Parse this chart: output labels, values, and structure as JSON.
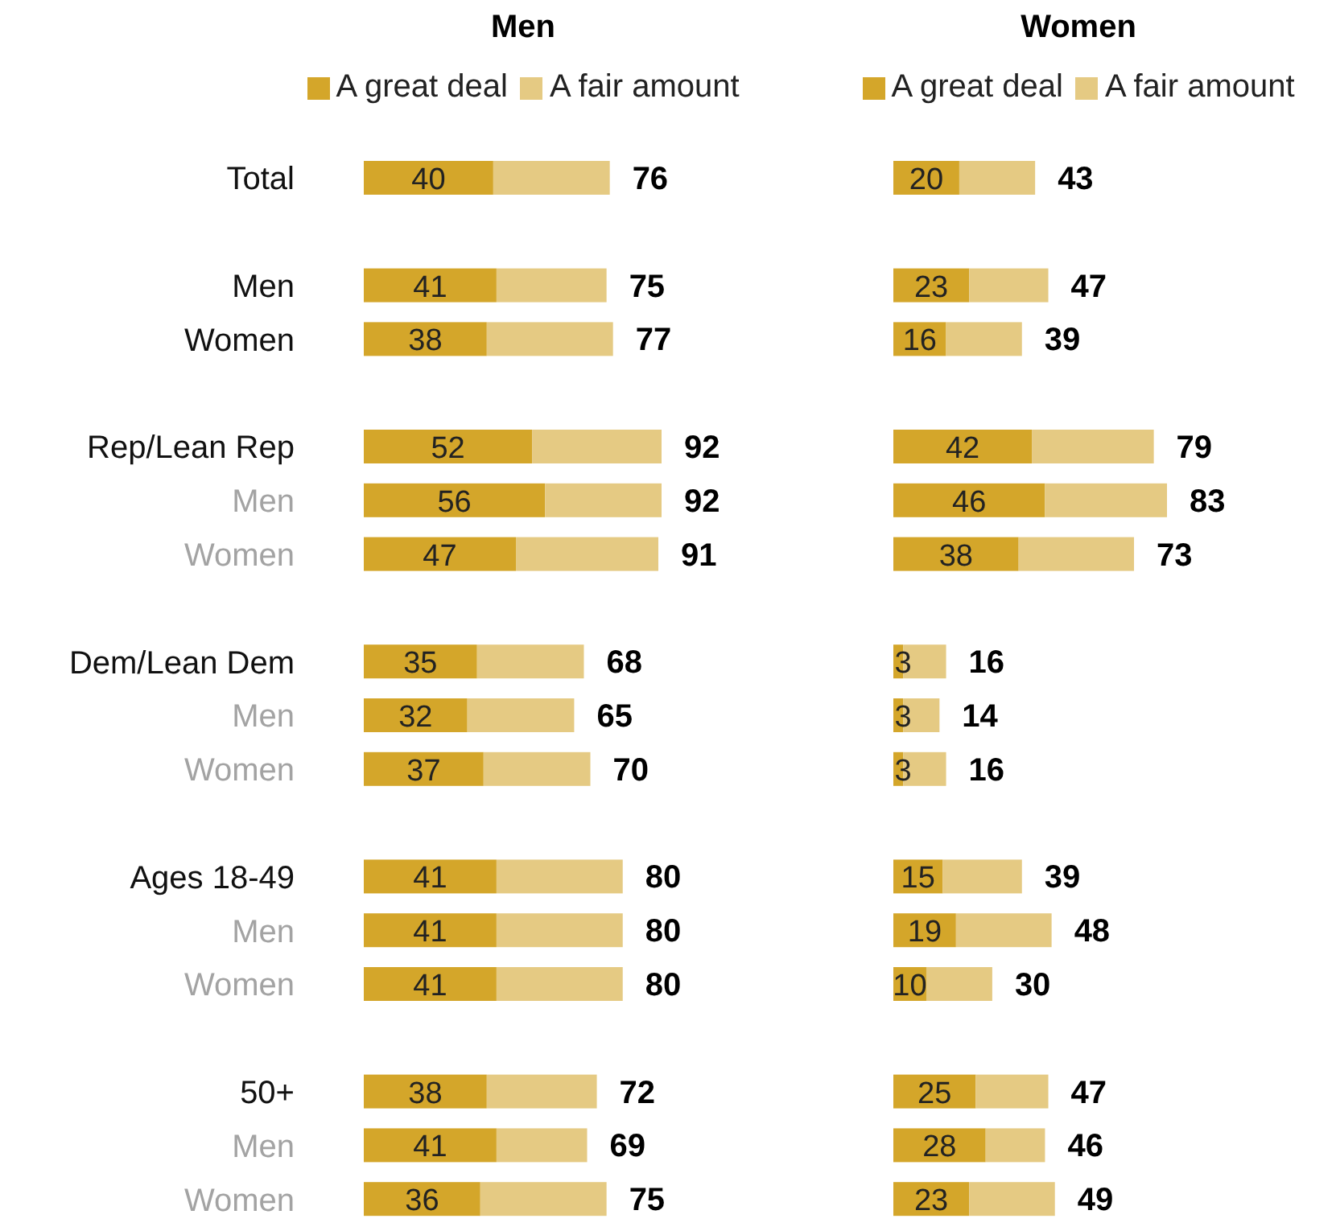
{
  "chart_data": [
    {
      "type": "bar",
      "orientation": "horizontal",
      "stacked": true,
      "title": "Men",
      "legend": "top",
      "tick_labels": "y",
      "categories": [
        "Total",
        null,
        "Men",
        "Women",
        null,
        "Rep/Lean Rep",
        "Men",
        "Women",
        null,
        "Dem/Lean Dem",
        "Men",
        "Women",
        null,
        "Ages 18-49",
        "Men",
        "Women",
        null,
        "50+",
        "Men",
        "Women"
      ],
      "series": [
        {
          "name": "A great deal",
          "color": "#d4a62a",
          "values": [
            40,
            null,
            41,
            38,
            null,
            52,
            56,
            47,
            null,
            35,
            32,
            37,
            null,
            41,
            41,
            41,
            null,
            38,
            41,
            36
          ],
          "value_labels": [
            "40",
            null,
            "41",
            "38",
            null,
            "52",
            "56",
            "47",
            null,
            "35",
            "32",
            "37",
            null,
            "41",
            "41",
            "41",
            null,
            "38",
            "41",
            "36"
          ]
        },
        {
          "name": "A fair amount",
          "color": "#e5ca83",
          "values": [
            36,
            null,
            34,
            39,
            null,
            40,
            36,
            44,
            null,
            33,
            33,
            33,
            null,
            39,
            39,
            39,
            null,
            34,
            28,
            39
          ]
        }
      ],
      "totals": [
        "76",
        null,
        "75",
        "77",
        null,
        "92",
        "92",
        "91",
        null,
        "68",
        "65",
        "70",
        null,
        "80",
        "80",
        "80",
        null,
        "72",
        "69",
        "75"
      ]
    },
    {
      "type": "bar",
      "orientation": "horizontal",
      "stacked": true,
      "title": "Women",
      "legend": "top",
      "tick_labels": false,
      "categories": [
        null,
        null,
        null,
        null,
        null,
        null,
        null,
        null,
        null,
        null,
        null,
        null,
        null,
        null,
        null,
        null,
        null,
        null,
        null,
        null
      ],
      "series": [
        {
          "name": "A great deal",
          "color": "#d4a62a",
          "values": [
            20,
            null,
            23,
            16,
            null,
            42,
            46,
            38,
            null,
            3,
            3,
            3,
            null,
            15,
            19,
            10,
            null,
            25,
            28,
            23
          ],
          "value_labels": [
            "20",
            null,
            "23",
            "16",
            null,
            "42",
            "46",
            "38",
            null,
            "3",
            "3",
            "3",
            null,
            "15",
            "19",
            "10",
            null,
            "25",
            "28",
            "23"
          ]
        },
        {
          "name": "A fair amount",
          "color": "#e5ca83",
          "values": [
            23,
            null,
            24,
            23,
            null,
            37,
            37,
            35,
            null,
            13,
            11,
            13,
            null,
            24,
            29,
            20,
            null,
            22,
            18,
            26
          ]
        }
      ],
      "totals": [
        "43",
        null,
        "47",
        "39",
        null,
        "79",
        "83",
        "73",
        null,
        "16",
        "14",
        "16",
        null,
        "39",
        "48",
        "30",
        null,
        "47",
        "46",
        "49"
      ]
    }
  ]
}
